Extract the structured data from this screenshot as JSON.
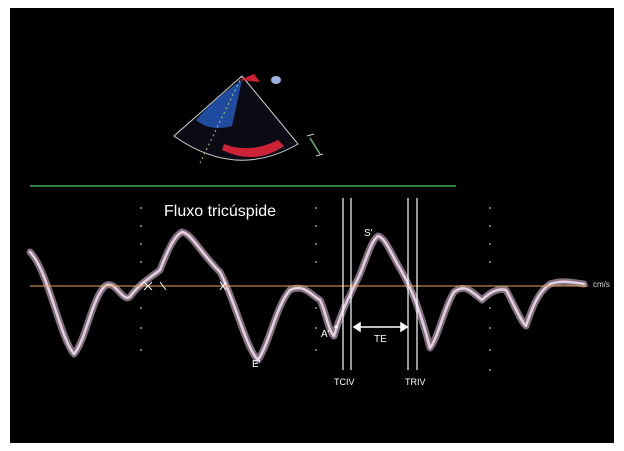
{
  "title": "Fluxo tricúspide",
  "labels": {
    "s_wave": "S'",
    "a_wave": "A'",
    "e_wave": "E'",
    "te": "TE",
    "tciv": "TCIV",
    "triv": "TRIV",
    "velocity_unit": "cm/s"
  },
  "colors": {
    "background": "#000000",
    "baseline": "#e8a55a",
    "separator": "#3fae49",
    "doppler_trace": "#e7c4e4",
    "time_markers": "#ffffff",
    "sector_blue": "#2d6fe8",
    "sector_red": "#e2263a"
  }
}
